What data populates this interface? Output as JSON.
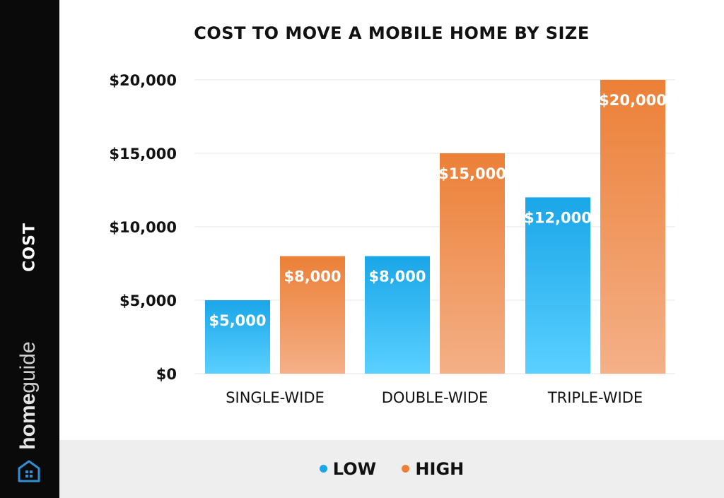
{
  "sidebar": {
    "axis_label": "COST",
    "brand_part1": "home",
    "brand_part2": "guide",
    "logo_icon": "house-logo-icon"
  },
  "chart_data": {
    "type": "bar",
    "title": "COST TO MOVE A MOBILE HOME BY SIZE",
    "ylabel": "COST",
    "xlabel": "",
    "categories": [
      "SINGLE-WIDE",
      "DOUBLE-WIDE",
      "TRIPLE-WIDE"
    ],
    "series": [
      {
        "name": "LOW",
        "values": [
          5000,
          8000,
          12000
        ],
        "labels": [
          "$5,000",
          "$8,000",
          "$12,000"
        ],
        "color_top": "#1aa6e8",
        "color_bottom": "#5ad0ff"
      },
      {
        "name": "HIGH",
        "values": [
          8000,
          15000,
          20000
        ],
        "labels": [
          "$8,000",
          "$15,000",
          "$20,000"
        ],
        "color_top": "#ec8037",
        "color_bottom": "#f4b088"
      }
    ],
    "ylim": [
      0,
      20000
    ],
    "yticks": [
      0,
      5000,
      10000,
      15000,
      20000
    ],
    "ytick_labels": [
      "$0",
      "$5,000",
      "$10,000",
      "$15,000",
      "$20,000"
    ],
    "grid": true,
    "legend_position": "bottom"
  },
  "legend": {
    "low_label": "LOW",
    "high_label": "HIGH",
    "low_color": "#1aa6e8",
    "high_color": "#ec8037"
  }
}
